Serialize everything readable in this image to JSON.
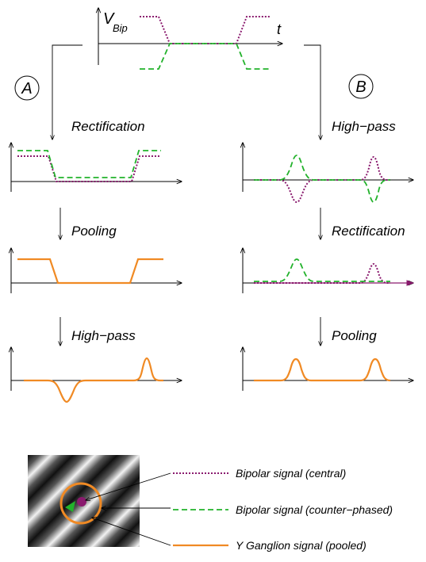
{
  "panels": {
    "a_label": "A",
    "b_label": "B"
  },
  "top_plot": {
    "y_label_main": "V",
    "y_label_sub": "Bip",
    "x_label": "t"
  },
  "column_a": {
    "step1": "Rectification",
    "step2": "Pooling",
    "step3": "High−pass"
  },
  "column_b": {
    "step1": "High−pass",
    "step2": "Rectification",
    "step3": "Pooling"
  },
  "legend": {
    "central": "Bipolar signal (central)",
    "counter": "Bipolar signal (counter−phased)",
    "pooled": "Y Ganglion signal (pooled)"
  },
  "colors": {
    "central": "#8a1a6e",
    "counter": "#22b22b",
    "pooled": "#f08a24"
  }
}
